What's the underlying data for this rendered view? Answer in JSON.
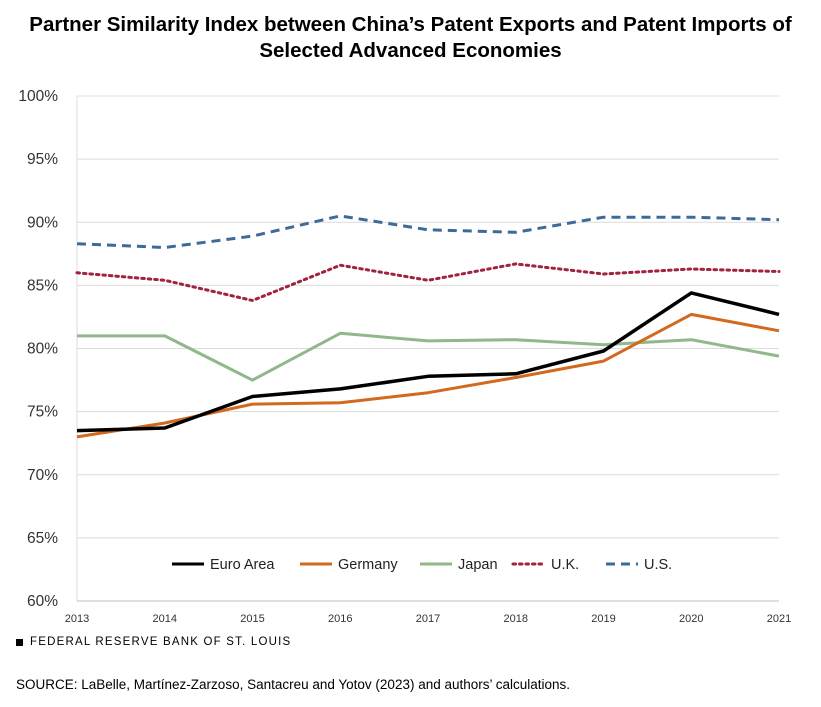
{
  "title_line1": "Partner Similarity Index between China’s Patent Exports and Patent Imports of",
  "title_line2": "Selected Advanced Economies",
  "footer_brand": "FEDERAL RESERVE BANK OF ST. LOUIS",
  "source": "SOURCE: LaBelle, Martínez-Zarzoso, Santacreu and Yotov (2023) and authors’ calculations.",
  "chart_data": {
    "type": "line",
    "title": "Partner Similarity Index between China’s Patent Exports and Patent Imports of Selected Advanced Economies",
    "xlabel": "",
    "ylabel": "",
    "x": [
      "2013",
      "2014",
      "2015",
      "2016",
      "2017",
      "2018",
      "2019",
      "2020",
      "2021"
    ],
    "ylim": [
      60,
      100
    ],
    "yticks": [
      60,
      65,
      70,
      75,
      80,
      85,
      90,
      95,
      100
    ],
    "ytick_labels": [
      "60%",
      "65%",
      "70%",
      "75%",
      "80%",
      "85%",
      "90%",
      "95%",
      "100%"
    ],
    "grid": "horizontal",
    "legend_position": "bottom-inside",
    "series": [
      {
        "name": "Euro Area",
        "color": "#000000",
        "style": "solid",
        "values": [
          73.5,
          73.7,
          76.2,
          76.8,
          77.8,
          78.0,
          79.8,
          84.4,
          82.7
        ]
      },
      {
        "name": "Germany",
        "color": "#d2691e",
        "style": "solid",
        "values": [
          73.0,
          74.1,
          75.6,
          75.7,
          76.5,
          77.7,
          79.0,
          82.7,
          81.4
        ]
      },
      {
        "name": "Japan",
        "color": "#90b88a",
        "style": "solid",
        "values": [
          81.0,
          81.0,
          77.5,
          81.2,
          80.6,
          80.7,
          80.3,
          80.7,
          79.4
        ]
      },
      {
        "name": "U.K.",
        "color": "#a0233f",
        "style": "dotted",
        "values": [
          86.0,
          85.4,
          83.8,
          86.6,
          85.4,
          86.7,
          85.9,
          86.3,
          86.1
        ]
      },
      {
        "name": "U.S.",
        "color": "#3d6b99",
        "style": "dashed",
        "values": [
          88.3,
          88.0,
          88.9,
          90.5,
          89.4,
          89.2,
          90.4,
          90.4,
          90.2
        ]
      }
    ]
  }
}
